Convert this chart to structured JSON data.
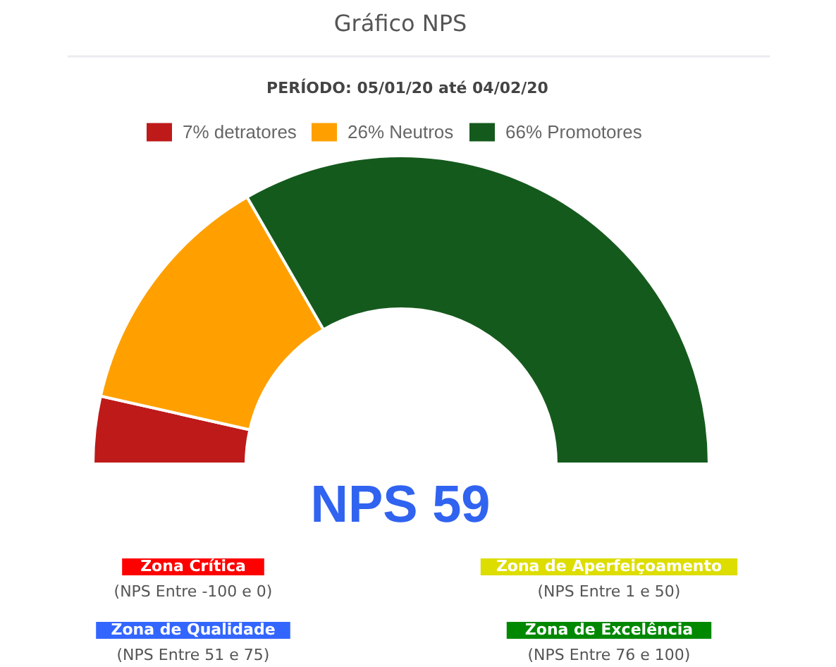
{
  "chart_data": {
    "type": "donut",
    "title": "Gráfico NPS",
    "subtitle": "PERÍODO: 05/01/20 até 04/02/20",
    "categories": [
      "7% detratores",
      "26% Neutros",
      "66% Promotores"
    ],
    "values": [
      7,
      26,
      66
    ],
    "colors": [
      "#be1a1a",
      "#ffa000",
      "#155a1d"
    ],
    "legend": "top",
    "annotations": [
      "NPS 59",
      "Zona Crítica",
      "(NPS Entre -100 e 0)",
      "Zona de Aperfeiçoamento",
      "(NPS Entre 1 e 50)",
      "Zona de Qualidade",
      "(NPS Entre 51 e 75)",
      "Zona de Excelência",
      "(NPS Entre 76 e 100)"
    ]
  }
}
